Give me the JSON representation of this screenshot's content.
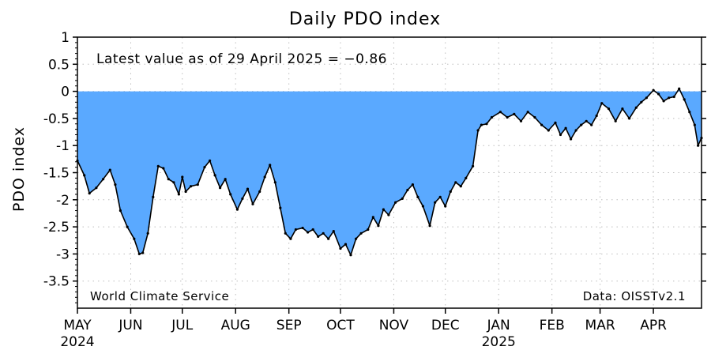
{
  "chart_data": {
    "type": "area",
    "title": "Daily PDO index",
    "ylabel": "PDO index",
    "xlabel": "",
    "annotation": "Latest value as of 29 April 2025 = −0.86",
    "credit_left": "World Climate Service",
    "credit_right": "Data: OISSTv2.1",
    "ylim": [
      -4,
      1
    ],
    "yticks": [
      1,
      0.5,
      0,
      -0.5,
      -1,
      -1.5,
      -2,
      -2.5,
      -3,
      -3.5
    ],
    "ytick_labels": [
      "1",
      "0.5",
      "0",
      "-0.5",
      "-1",
      "-1.5",
      "-2",
      "-2.5",
      "-3",
      "-3.5"
    ],
    "xlim": [
      "2024-05-01",
      "2025-04-29"
    ],
    "xticks": [
      {
        "date": "2024-05-01",
        "label": "MAY",
        "year": "2024"
      },
      {
        "date": "2024-06-01",
        "label": "JUN",
        "year": ""
      },
      {
        "date": "2024-07-01",
        "label": "JUL",
        "year": ""
      },
      {
        "date": "2024-08-01",
        "label": "AUG",
        "year": ""
      },
      {
        "date": "2024-09-01",
        "label": "SEP",
        "year": ""
      },
      {
        "date": "2024-10-01",
        "label": "OCT",
        "year": ""
      },
      {
        "date": "2024-11-01",
        "label": "NOV",
        "year": ""
      },
      {
        "date": "2024-12-01",
        "label": "DEC",
        "year": ""
      },
      {
        "date": "2025-01-01",
        "label": "JAN",
        "year": "2025"
      },
      {
        "date": "2025-02-01",
        "label": "FEB",
        "year": ""
      },
      {
        "date": "2025-03-01",
        "label": "MAR",
        "year": ""
      },
      {
        "date": "2025-04-01",
        "label": "APR",
        "year": ""
      }
    ],
    "grid": true,
    "fill_color": "#5AA9FF",
    "line_color": "#000000",
    "series": [
      {
        "points": [
          [
            "2024-05-01",
            -1.28
          ],
          [
            "2024-05-05",
            -1.55
          ],
          [
            "2024-05-08",
            -1.88
          ],
          [
            "2024-05-12",
            -1.78
          ],
          [
            "2024-05-16",
            -1.62
          ],
          [
            "2024-05-20",
            -1.45
          ],
          [
            "2024-05-23",
            -1.72
          ],
          [
            "2024-05-26",
            -2.2
          ],
          [
            "2024-05-30",
            -2.5
          ],
          [
            "2024-06-03",
            -2.72
          ],
          [
            "2024-06-06",
            -3.0
          ],
          [
            "2024-06-08",
            -2.98
          ],
          [
            "2024-06-11",
            -2.62
          ],
          [
            "2024-06-14",
            -1.95
          ],
          [
            "2024-06-17",
            -1.38
          ],
          [
            "2024-06-20",
            -1.42
          ],
          [
            "2024-06-23",
            -1.62
          ],
          [
            "2024-06-26",
            -1.68
          ],
          [
            "2024-06-29",
            -1.9
          ],
          [
            "2024-07-01",
            -1.58
          ],
          [
            "2024-07-03",
            -1.85
          ],
          [
            "2024-07-06",
            -1.75
          ],
          [
            "2024-07-10",
            -1.72
          ],
          [
            "2024-07-14",
            -1.4
          ],
          [
            "2024-07-17",
            -1.28
          ],
          [
            "2024-07-20",
            -1.55
          ],
          [
            "2024-07-23",
            -1.78
          ],
          [
            "2024-07-26",
            -1.62
          ],
          [
            "2024-07-29",
            -1.9
          ],
          [
            "2024-08-02",
            -2.18
          ],
          [
            "2024-08-05",
            -1.98
          ],
          [
            "2024-08-08",
            -1.8
          ],
          [
            "2024-08-11",
            -2.08
          ],
          [
            "2024-08-15",
            -1.85
          ],
          [
            "2024-08-18",
            -1.58
          ],
          [
            "2024-08-21",
            -1.36
          ],
          [
            "2024-08-24",
            -1.68
          ],
          [
            "2024-08-27",
            -2.15
          ],
          [
            "2024-08-30",
            -2.62
          ],
          [
            "2024-09-02",
            -2.72
          ],
          [
            "2024-09-05",
            -2.55
          ],
          [
            "2024-09-09",
            -2.52
          ],
          [
            "2024-09-12",
            -2.6
          ],
          [
            "2024-09-15",
            -2.55
          ],
          [
            "2024-09-18",
            -2.68
          ],
          [
            "2024-09-21",
            -2.62
          ],
          [
            "2024-09-24",
            -2.72
          ],
          [
            "2024-09-27",
            -2.58
          ],
          [
            "2024-10-01",
            -2.9
          ],
          [
            "2024-10-04",
            -2.82
          ],
          [
            "2024-10-07",
            -3.02
          ],
          [
            "2024-10-10",
            -2.72
          ],
          [
            "2024-10-13",
            -2.62
          ],
          [
            "2024-10-17",
            -2.55
          ],
          [
            "2024-10-20",
            -2.32
          ],
          [
            "2024-10-23",
            -2.48
          ],
          [
            "2024-10-26",
            -2.18
          ],
          [
            "2024-10-29",
            -2.28
          ],
          [
            "2024-11-02",
            -2.05
          ],
          [
            "2024-11-06",
            -1.98
          ],
          [
            "2024-11-09",
            -1.82
          ],
          [
            "2024-11-12",
            -1.72
          ],
          [
            "2024-11-15",
            -1.95
          ],
          [
            "2024-11-18",
            -2.12
          ],
          [
            "2024-11-22",
            -2.48
          ],
          [
            "2024-11-25",
            -2.05
          ],
          [
            "2024-11-28",
            -1.95
          ],
          [
            "2024-12-01",
            -2.12
          ],
          [
            "2024-12-04",
            -1.85
          ],
          [
            "2024-12-07",
            -1.68
          ],
          [
            "2024-12-10",
            -1.75
          ],
          [
            "2024-12-13",
            -1.6
          ],
          [
            "2024-12-17",
            -1.38
          ],
          [
            "2024-12-20",
            -0.72
          ],
          [
            "2024-12-22",
            -0.62
          ],
          [
            "2024-12-25",
            -0.6
          ],
          [
            "2024-12-28",
            -0.48
          ],
          [
            "2025-01-02",
            -0.38
          ],
          [
            "2025-01-06",
            -0.48
          ],
          [
            "2025-01-10",
            -0.42
          ],
          [
            "2025-01-14",
            -0.55
          ],
          [
            "2025-01-18",
            -0.38
          ],
          [
            "2025-01-22",
            -0.48
          ],
          [
            "2025-01-26",
            -0.62
          ],
          [
            "2025-01-30",
            -0.72
          ],
          [
            "2025-02-03",
            -0.58
          ],
          [
            "2025-02-06",
            -0.8
          ],
          [
            "2025-02-09",
            -0.68
          ],
          [
            "2025-02-12",
            -0.88
          ],
          [
            "2025-02-15",
            -0.72
          ],
          [
            "2025-02-18",
            -0.62
          ],
          [
            "2025-02-21",
            -0.55
          ],
          [
            "2025-02-24",
            -0.62
          ],
          [
            "2025-02-27",
            -0.45
          ],
          [
            "2025-03-02",
            -0.22
          ],
          [
            "2025-03-06",
            -0.32
          ],
          [
            "2025-03-10",
            -0.55
          ],
          [
            "2025-03-14",
            -0.32
          ],
          [
            "2025-03-18",
            -0.5
          ],
          [
            "2025-03-22",
            -0.3
          ],
          [
            "2025-03-25",
            -0.2
          ],
          [
            "2025-03-28",
            -0.12
          ],
          [
            "2025-04-01",
            0.02
          ],
          [
            "2025-04-04",
            -0.05
          ],
          [
            "2025-04-07",
            -0.18
          ],
          [
            "2025-04-10",
            -0.12
          ],
          [
            "2025-04-13",
            -0.1
          ],
          [
            "2025-04-16",
            0.05
          ],
          [
            "2025-04-19",
            -0.15
          ],
          [
            "2025-04-22",
            -0.38
          ],
          [
            "2025-04-25",
            -0.62
          ],
          [
            "2025-04-27",
            -1.0
          ],
          [
            "2025-04-29",
            -0.86
          ]
        ]
      }
    ]
  }
}
